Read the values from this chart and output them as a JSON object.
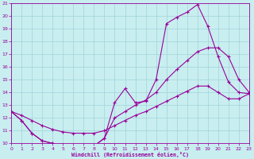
{
  "bg_color": "#c8eef0",
  "grid_color": "#a0d4d8",
  "line_color": "#990099",
  "xlabel": "Windchill (Refroidissement éolien,°C)",
  "xlim": [
    0,
    23
  ],
  "ylim": [
    10,
    21
  ],
  "xticks": [
    0,
    1,
    2,
    3,
    4,
    5,
    6,
    7,
    8,
    9,
    10,
    11,
    12,
    13,
    14,
    15,
    16,
    17,
    18,
    19,
    20,
    21,
    22,
    23
  ],
  "yticks": [
    10,
    11,
    12,
    13,
    14,
    15,
    16,
    17,
    18,
    19,
    20,
    21
  ],
  "curve1_x": [
    0,
    1,
    2,
    3,
    4,
    5,
    6,
    7,
    8,
    9,
    10,
    11,
    12,
    13,
    14,
    15,
    16,
    17,
    18,
    19,
    20,
    21,
    22,
    23
  ],
  "curve1_y": [
    12.5,
    11.8,
    10.8,
    10.2,
    10.0,
    9.9,
    9.8,
    9.8,
    9.8,
    10.4,
    13.2,
    14.3,
    13.2,
    13.3,
    15.0,
    19.4,
    19.9,
    20.3,
    20.9,
    19.2,
    16.8,
    14.8,
    14.0,
    13.9
  ],
  "curve2_x": [
    0,
    1,
    2,
    3,
    4,
    5,
    6,
    7,
    8,
    9,
    10,
    11,
    12,
    13,
    14,
    15,
    16,
    17,
    18,
    19,
    20,
    21,
    22,
    23
  ],
  "curve2_y": [
    12.5,
    11.8,
    10.8,
    10.2,
    10.0,
    9.9,
    9.8,
    9.8,
    9.8,
    10.4,
    12.0,
    12.5,
    13.0,
    13.4,
    14.0,
    15.0,
    15.8,
    16.5,
    17.2,
    17.5,
    17.5,
    16.8,
    15.0,
    14.0
  ],
  "curve3_x": [
    0,
    1,
    2,
    3,
    4,
    5,
    6,
    7,
    8,
    9,
    10,
    11,
    12,
    13,
    14,
    15,
    16,
    17,
    18,
    19,
    20,
    21,
    22,
    23
  ],
  "curve3_y": [
    12.5,
    12.2,
    11.8,
    11.4,
    11.1,
    10.9,
    10.8,
    10.8,
    10.8,
    11.0,
    11.4,
    11.8,
    12.2,
    12.5,
    12.9,
    13.3,
    13.7,
    14.1,
    14.5,
    14.5,
    14.0,
    13.5,
    13.5,
    13.9
  ]
}
